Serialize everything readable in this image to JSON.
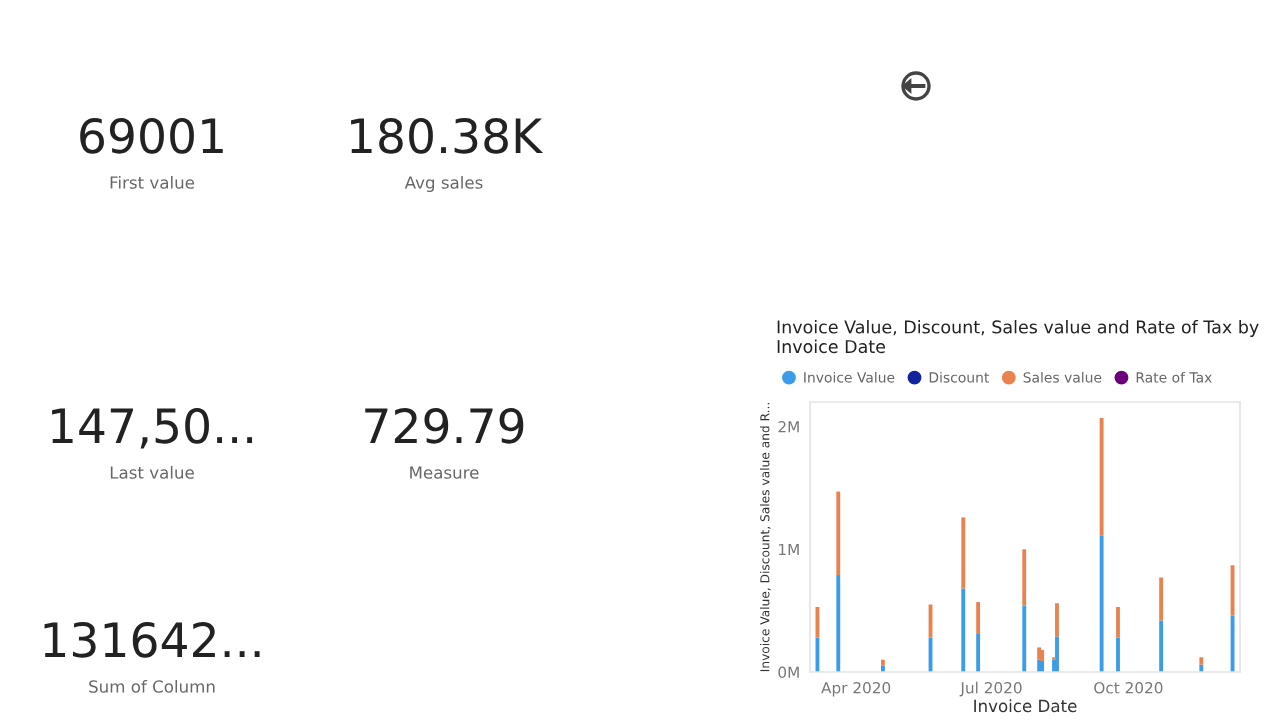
{
  "chart_data": [
    {
      "type": "other",
      "annotations": [
        "69001",
        "First value",
        "180.38K",
        "Avg sales",
        "147,50...",
        "Last value",
        "729.79",
        "Measure",
        "131642...",
        "Sum of Column"
      ]
    },
    {
      "type": "bar",
      "stacked": true,
      "title": "Invoice Value, Discount, Sales value and Rate of Tax by Invoice Date",
      "xlabel": "Invoice Date",
      "ylabel": "Invoice Value, Discount, Sales value and R...",
      "x": [
        "2020-03-06",
        "2020-03-20",
        "2020-04-19",
        "2020-05-21",
        "2020-06-12",
        "2020-06-22",
        "2020-07-23",
        "2020-08-02",
        "2020-08-04",
        "2020-08-12",
        "2020-08-14",
        "2020-09-13",
        "2020-09-24",
        "2020-10-23",
        "2020-11-19",
        "2020-12-10"
      ],
      "series": [
        {
          "name": "Invoice Value",
          "color": "#3b9ce8",
          "values": [
            280000,
            790000,
            50000,
            280000,
            680000,
            310000,
            540000,
            100000,
            90000,
            100000,
            290000,
            1110000,
            280000,
            420000,
            60000,
            460000
          ]
        },
        {
          "name": "Discount",
          "color": "#12239e",
          "values": [
            null,
            null,
            null,
            null,
            null,
            null,
            null,
            null,
            null,
            null,
            null,
            null,
            null,
            null,
            null,
            null
          ]
        },
        {
          "name": "Sales value",
          "color": "#e8834f",
          "values": [
            250000,
            680000,
            50000,
            270000,
            580000,
            260000,
            460000,
            100000,
            90000,
            20000,
            270000,
            960000,
            250000,
            350000,
            60000,
            410000
          ]
        },
        {
          "name": "Rate of Tax",
          "color": "#6b007b",
          "values": [
            null,
            null,
            null,
            null,
            null,
            null,
            null,
            null,
            null,
            null,
            null,
            null,
            null,
            null,
            null,
            null
          ]
        }
      ],
      "xlim": [
        "2020-03-01",
        "2020-12-15"
      ],
      "xticks": [
        {
          "value": "2020-04-01",
          "label": "Apr 2020"
        },
        {
          "value": "2020-07-01",
          "label": "Jul 2020"
        },
        {
          "value": "2020-10-01",
          "label": "Oct 2020"
        }
      ],
      "ylim": [
        0,
        2200000
      ],
      "yticks": [
        {
          "value": 0,
          "label": "0M"
        },
        {
          "value": 1000000,
          "label": "1M"
        },
        {
          "value": 2000000,
          "label": "2M"
        }
      ],
      "grid": false,
      "legend": "top left",
      "marker": "circle"
    }
  ]
}
